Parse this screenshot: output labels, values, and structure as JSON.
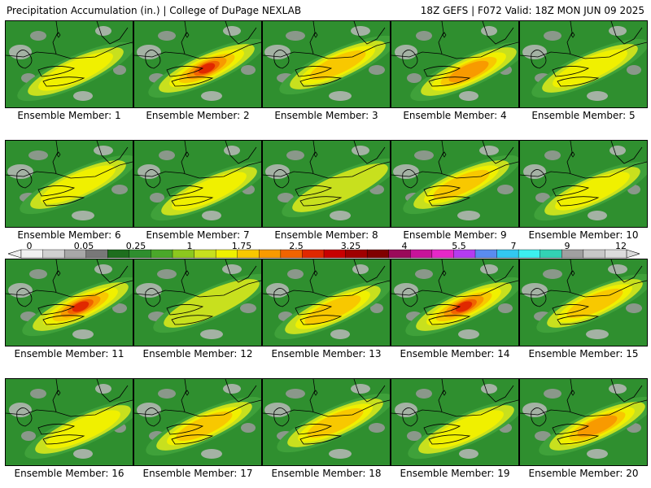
{
  "header": {
    "left": "Precipitation Accumulation (in.) | College of DuPage NEXLAB",
    "right": "18Z GEFS | F072 Valid: 18Z MON JUN 09 2025"
  },
  "colorbar": {
    "labels": [
      "0",
      "0.05",
      "0.25",
      "1",
      "1.75",
      "2.5",
      "3.25",
      "4",
      "5.5",
      "7",
      "9",
      "12"
    ],
    "colors": [
      "#f0f0f0",
      "#d0d0d0",
      "#a8a8a8",
      "#787878",
      "#1e6e1e",
      "#2e8e2e",
      "#4aa82a",
      "#8cc81e",
      "#c8e01e",
      "#f0f000",
      "#f8c800",
      "#f89a00",
      "#f06400",
      "#e02800",
      "#c80000",
      "#a00000",
      "#800000",
      "#9a0a5a",
      "#c8149a",
      "#e628c8",
      "#b43cf0",
      "#5a8cf0",
      "#32c8f0",
      "#3cf0f0",
      "#32d2b4",
      "#a0a0a0",
      "#c8c8c8",
      "#dcdcdc"
    ]
  },
  "panels": [
    {
      "label": "Ensemble Member: 1",
      "peak": 1.9
    },
    {
      "label": "Ensemble Member: 2",
      "peak": 3.3
    },
    {
      "label": "Ensemble Member: 3",
      "peak": 2.0
    },
    {
      "label": "Ensemble Member: 4",
      "peak": 2.8
    },
    {
      "label": "Ensemble Member: 5",
      "peak": 1.6
    },
    {
      "label": "Ensemble Member: 6",
      "peak": 1.9
    },
    {
      "label": "Ensemble Member: 7",
      "peak": 1.8
    },
    {
      "label": "Ensemble Member: 8",
      "peak": 1.3
    },
    {
      "label": "Ensemble Member: 9",
      "peak": 2.2
    },
    {
      "label": "Ensemble Member: 10",
      "peak": 1.7
    },
    {
      "label": "Ensemble Member: 11",
      "peak": 3.3
    },
    {
      "label": "Ensemble Member: 12",
      "peak": 1.4
    },
    {
      "label": "Ensemble Member: 13",
      "peak": 2.2
    },
    {
      "label": "Ensemble Member: 14",
      "peak": 3.4
    },
    {
      "label": "Ensemble Member: 15",
      "peak": 2.0
    },
    {
      "label": "Ensemble Member: 16",
      "peak": 1.8
    },
    {
      "label": "Ensemble Member: 17",
      "peak": 2.4
    },
    {
      "label": "Ensemble Member: 18",
      "peak": 2.1
    },
    {
      "label": "Ensemble Member: 19",
      "peak": 1.7
    },
    {
      "label": "Ensemble Member: 20",
      "peak": 2.9
    }
  ]
}
